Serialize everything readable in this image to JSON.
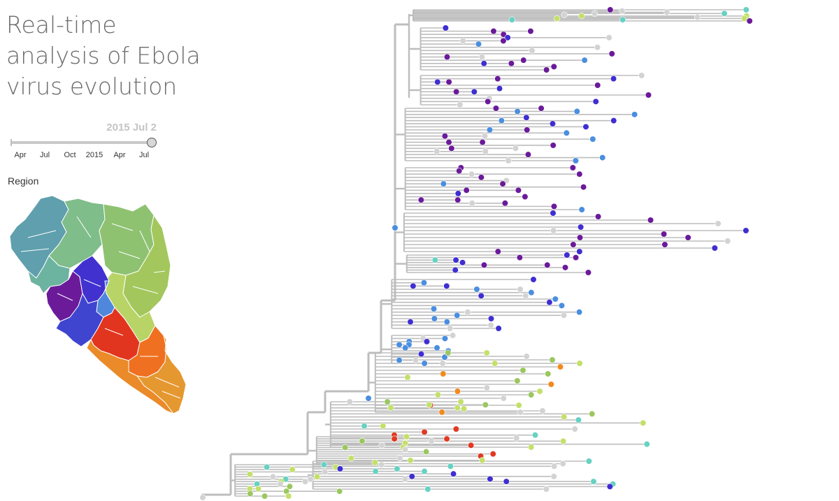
{
  "title": {
    "line1": "Real-time",
    "line2": "analysis of Ebola",
    "line3": "virus evolution"
  },
  "date_slider": {
    "current_date": "2015 Jul 2",
    "position": 1.0,
    "tick_labels": [
      "Apr",
      "Jul",
      "Oct",
      "2015",
      "Apr",
      "Jul"
    ]
  },
  "legend": {
    "title": "Region"
  },
  "colors": {
    "branch": "#bdbdbd",
    "unknown": "#d3d3d3",
    "guinea_nw": "#5e9bab",
    "guinea_north": "#7bbd86",
    "guinea_east": "#9bc760",
    "guinea_se": "#c3e06a",
    "sierra_leone_west": "#6a1a9a",
    "sierra_leone_central": "#3f2ed1",
    "sierra_leone_south": "#4a8ee0",
    "liberia_west": "#e03a22",
    "liberia_east": "#f28a1e",
    "guinea_coast": "#67d1c2"
  },
  "icons": {
    "slider_handle": "circle-handle-icon",
    "map": "region-map-icon"
  }
}
